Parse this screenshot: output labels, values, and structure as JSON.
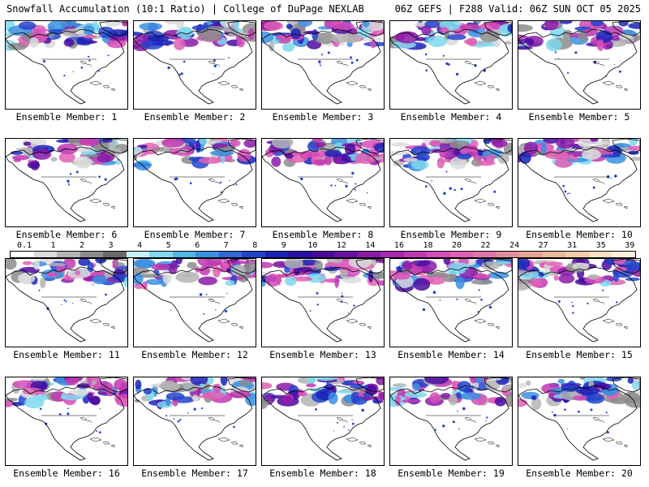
{
  "header": {
    "left": "Snowfall Accumulation (10:1 Ratio) | College of DuPage NEXLAB",
    "right": "06Z GEFS | F288 Valid: 06Z SUN OCT 05 2025"
  },
  "member_label_prefix": "Ensemble Member:",
  "members": [
    "1",
    "2",
    "3",
    "4",
    "5",
    "6",
    "7",
    "8",
    "9",
    "10",
    "11",
    "12",
    "13",
    "14",
    "15",
    "16",
    "17",
    "18",
    "19",
    "20"
  ],
  "colorbar": {
    "labels": [
      "0.1",
      "1",
      "2",
      "3",
      "4",
      "5",
      "6",
      "7",
      "8",
      "9",
      "10",
      "12",
      "14",
      "16",
      "18",
      "20",
      "22",
      "24",
      "27",
      "31",
      "35",
      "39"
    ],
    "colors": [
      "#ffffff",
      "#dcdcdc",
      "#b4b4b4",
      "#8c8c8c",
      "#696969",
      "#c6f0f8",
      "#7fd8ef",
      "#4fb6e8",
      "#3b8fe0",
      "#2f68d8",
      "#2244cc",
      "#1a22b8",
      "#2a10a8",
      "#4a0aa0",
      "#6a10a8",
      "#8a1aa8",
      "#a82aae",
      "#c23ab2",
      "#d84cb8",
      "#e060b4",
      "#e076a8",
      "#e08e9c",
      "#e6a494",
      "#ecb89a",
      "#f2cca8",
      "#f8e0c0",
      "#fdf0dc"
    ]
  }
}
